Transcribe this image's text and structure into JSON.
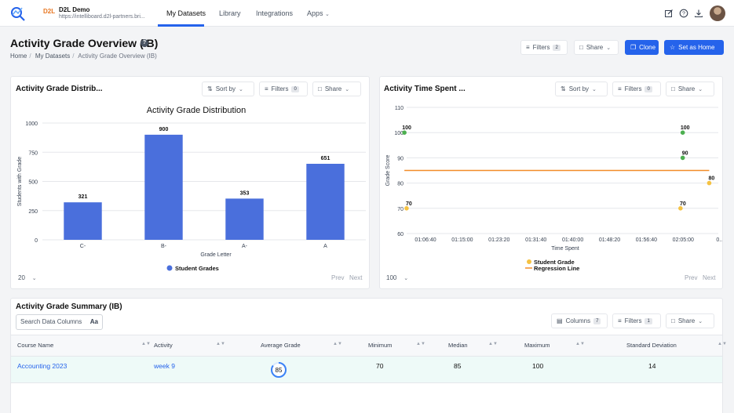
{
  "nav": {
    "org_badge": "D2L",
    "org_name": "D2L Demo",
    "org_url": "https://intelliboard.d2l-partners.bri...",
    "links": [
      "My Datasets",
      "Library",
      "Integrations",
      "Apps"
    ],
    "icons": [
      "edit-icon",
      "help-icon",
      "download-icon"
    ]
  },
  "page": {
    "title": "Activity Grade Overview (IB)",
    "breadcrumb": [
      "Home",
      "My Datasets",
      "Activity Grade Overview (IB)"
    ],
    "filters_label": "Filters",
    "filters_count": "2",
    "share_label": "Share",
    "clone_label": "Clone",
    "set_home_label": "Set as Home"
  },
  "widget_left": {
    "title": "Activity Grade Distrib...",
    "sort_label": "Sort by",
    "filters_label": "Filters",
    "filters_count": "0",
    "share_label": "Share",
    "page_size": "20",
    "prev": "Prev",
    "next": "Next"
  },
  "widget_right": {
    "title": "Activity Time Spent ...",
    "sort_label": "Sort by",
    "filters_label": "Filters",
    "filters_count": "0",
    "share_label": "Share",
    "page_size": "100",
    "prev": "Prev",
    "next": "Next"
  },
  "chart_data": [
    {
      "type": "bar",
      "title": "Activity Grade Distribution",
      "xlabel": "Grade Letter",
      "ylabel": "Students with Grade",
      "categories": [
        "C-",
        "B-",
        "A-",
        "A"
      ],
      "series": [
        {
          "name": "Student Grades",
          "values": [
            321,
            900,
            353,
            651
          ],
          "color": "#4a6fdc"
        }
      ],
      "ylim": [
        0,
        1000
      ],
      "yticks": [
        0,
        250,
        500,
        750,
        1000
      ],
      "grid": true,
      "legend": "bottom"
    },
    {
      "type": "scatter",
      "title": "",
      "xlabel": "Time Spent",
      "ylabel": "Grade Score",
      "xticks": [
        "01:06:40",
        "01:15:00",
        "01:23:20",
        "01:31:40",
        "01:40:00",
        "01:48:20",
        "01:56:40",
        "02:05:00",
        "0..."
      ],
      "ylim": [
        60,
        110
      ],
      "yticks": [
        60,
        70,
        80,
        90,
        100,
        110
      ],
      "series": [
        {
          "name": "Student Grade",
          "color_note": "yellow when below 90, green when 90 or more",
          "points": [
            {
              "x": "01:01:00",
              "y": 100
            },
            {
              "x": "01:01:30",
              "y": 70
            },
            {
              "x": "02:04:00",
              "y": 100
            },
            {
              "x": "02:04:00",
              "y": 90
            },
            {
              "x": "02:03:30",
              "y": 70
            },
            {
              "x": "02:10:00",
              "y": 80
            }
          ]
        },
        {
          "name": "Regression Line",
          "color": "#f28c28",
          "points": [
            {
              "x": "01:01:00",
              "y": 85
            },
            {
              "x": "02:10:00",
              "y": 85
            }
          ]
        }
      ],
      "grid": true,
      "legend": "bottom"
    }
  ],
  "table": {
    "title": "Activity Grade Summary (IB)",
    "search_placeholder": "Search Data Columns",
    "search_toggle": "Aa",
    "columns_label": "Columns",
    "columns_count": "7",
    "filters_label": "Filters",
    "filters_count": "1",
    "share_label": "Share",
    "headers": [
      "Course Name",
      "Activity",
      "Average Grade",
      "Minimum",
      "Median",
      "Maximum",
      "Standard Deviation"
    ],
    "rows": [
      {
        "course": "Accounting 2023",
        "activity": "week 9",
        "average": 85,
        "minimum": "70",
        "median": "85",
        "maximum": "100",
        "std_dev": "14"
      }
    ]
  },
  "colors": {
    "accent": "#2563eb",
    "bar": "#4a6fdc",
    "green": "#4caf50",
    "yellow": "#f5c242",
    "regression": "#f28c28"
  }
}
